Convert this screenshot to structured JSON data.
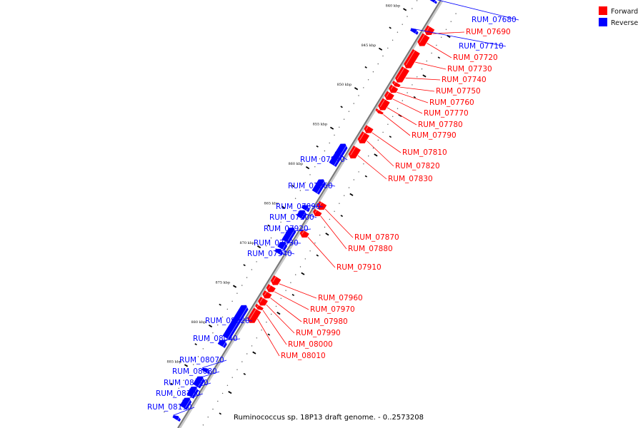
{
  "caption": "Ruminococcus sp. 18P13 draft genome. - 0..2573208",
  "legend": [
    {
      "label": "Forward",
      "color": "#ff0000"
    },
    {
      "label": "Reverse",
      "color": "#0000ff"
    }
  ],
  "colors": {
    "forward": "#ff0000",
    "reverse": "#0000ff",
    "axis": "#777777"
  },
  "scale": {
    "ticks": [
      {
        "kbp": 840,
        "label": "840 kbp"
      },
      {
        "kbp": 845,
        "label": "845 kbp"
      },
      {
        "kbp": 850,
        "label": "850 kbp"
      },
      {
        "kbp": 855,
        "label": "855 kbp"
      },
      {
        "kbp": 860,
        "label": "860 kbp"
      },
      {
        "kbp": 865,
        "label": "865 kbp"
      },
      {
        "kbp": 870,
        "label": "870 kbp"
      },
      {
        "kbp": 875,
        "label": "875 kbp"
      },
      {
        "kbp": 880,
        "label": "880 kbp"
      },
      {
        "kbp": 885,
        "label": "885 kbp"
      }
    ]
  },
  "genes": [
    {
      "name": "RUM_07680",
      "strand": "reverse",
      "start_kbp": 837.4,
      "end_kbp": 837.7
    },
    {
      "name": "RUM_07690",
      "strand": "forward",
      "start_kbp": 840.2,
      "end_kbp": 841.1
    },
    {
      "name": "RUM_07710",
      "strand": "reverse",
      "start_kbp": 841.2,
      "end_kbp": 841.6
    },
    {
      "name": "RUM_07720",
      "strand": "forward",
      "start_kbp": 841.2,
      "end_kbp": 842.5
    },
    {
      "name": "RUM_07730",
      "strand": "forward",
      "start_kbp": 843.2,
      "end_kbp": 845.3
    },
    {
      "name": "RUM_07740",
      "strand": "forward",
      "start_kbp": 845.4,
      "end_kbp": 847.1
    },
    {
      "name": "RUM_07750",
      "strand": "forward",
      "start_kbp": 847.2,
      "end_kbp": 847.6
    },
    {
      "name": "RUM_07760",
      "strand": "forward",
      "start_kbp": 847.7,
      "end_kbp": 848.4
    },
    {
      "name": "RUM_07770",
      "strand": "forward",
      "start_kbp": 848.5,
      "end_kbp": 849.3
    },
    {
      "name": "RUM_07780",
      "strand": "forward",
      "start_kbp": 849.4,
      "end_kbp": 850.6
    },
    {
      "name": "RUM_07790",
      "strand": "forward",
      "start_kbp": 850.7,
      "end_kbp": 851.0
    },
    {
      "name": "RUM_07810",
      "strand": "forward",
      "start_kbp": 852.8,
      "end_kbp": 853.5
    },
    {
      "name": "RUM_07820",
      "strand": "forward",
      "start_kbp": 853.6,
      "end_kbp": 854.8
    },
    {
      "name": "RUM_07830",
      "strand": "forward",
      "start_kbp": 855.4,
      "end_kbp": 856.7
    },
    {
      "name": "RUM_07840",
      "strand": "reverse",
      "start_kbp": 855.7,
      "end_kbp": 858.3
    },
    {
      "name": "RUM_07860",
      "strand": "reverse",
      "start_kbp": 860.2,
      "end_kbp": 861.8
    },
    {
      "name": "RUM_07870",
      "strand": "forward",
      "start_kbp": 862.4,
      "end_kbp": 863.2
    },
    {
      "name": "RUM_07880",
      "strand": "forward",
      "start_kbp": 863.4,
      "end_kbp": 864.0
    },
    {
      "name": "RUM_07890",
      "strand": "reverse",
      "start_kbp": 863.5,
      "end_kbp": 864.0
    },
    {
      "name": "RUM_07900",
      "strand": "reverse",
      "start_kbp": 864.1,
      "end_kbp": 865.0
    },
    {
      "name": "RUM_07910",
      "strand": "forward",
      "start_kbp": 866.0,
      "end_kbp": 866.7
    },
    {
      "name": "RUM_07920",
      "strand": "reverse",
      "start_kbp": 866.3,
      "end_kbp": 868.0
    },
    {
      "name": "RUM_07930",
      "strand": "reverse",
      "start_kbp": 868.1,
      "end_kbp": 868.9
    },
    {
      "name": "RUM_07940",
      "strand": "reverse",
      "start_kbp": 869.0,
      "end_kbp": 869.5
    },
    {
      "name": "RUM_07960",
      "strand": "forward",
      "start_kbp": 871.8,
      "end_kbp": 872.7
    },
    {
      "name": "RUM_07970",
      "strand": "forward",
      "start_kbp": 872.9,
      "end_kbp": 873.6
    },
    {
      "name": "RUM_07980",
      "strand": "forward",
      "start_kbp": 873.7,
      "end_kbp": 874.4
    },
    {
      "name": "RUM_07990",
      "strand": "forward",
      "start_kbp": 874.5,
      "end_kbp": 875.3
    },
    {
      "name": "RUM_08000",
      "strand": "forward",
      "start_kbp": 875.4,
      "end_kbp": 875.8
    },
    {
      "name": "RUM_08010",
      "strand": "forward",
      "start_kbp": 875.9,
      "end_kbp": 877.5
    },
    {
      "name": "RUM_08020",
      "strand": "reverse",
      "start_kbp": 876.1,
      "end_kbp": 880.2
    },
    {
      "name": "RUM_08040",
      "strand": "reverse",
      "start_kbp": 880.5,
      "end_kbp": 881.2
    },
    {
      "name": "RUM_08070",
      "strand": "reverse",
      "start_kbp": 884.1,
      "end_kbp": 884.5
    },
    {
      "name": "RUM_08080",
      "strand": "reverse",
      "start_kbp": 885.1,
      "end_kbp": 886.3
    },
    {
      "name": "RUM_08090",
      "strand": "reverse",
      "start_kbp": 886.4,
      "end_kbp": 887.6
    },
    {
      "name": "RUM_08100",
      "strand": "reverse",
      "start_kbp": 887.8,
      "end_kbp": 889.0
    },
    {
      "name": "RUM_08110",
      "strand": "reverse",
      "start_kbp": 890.1,
      "end_kbp": 890.5
    }
  ]
}
